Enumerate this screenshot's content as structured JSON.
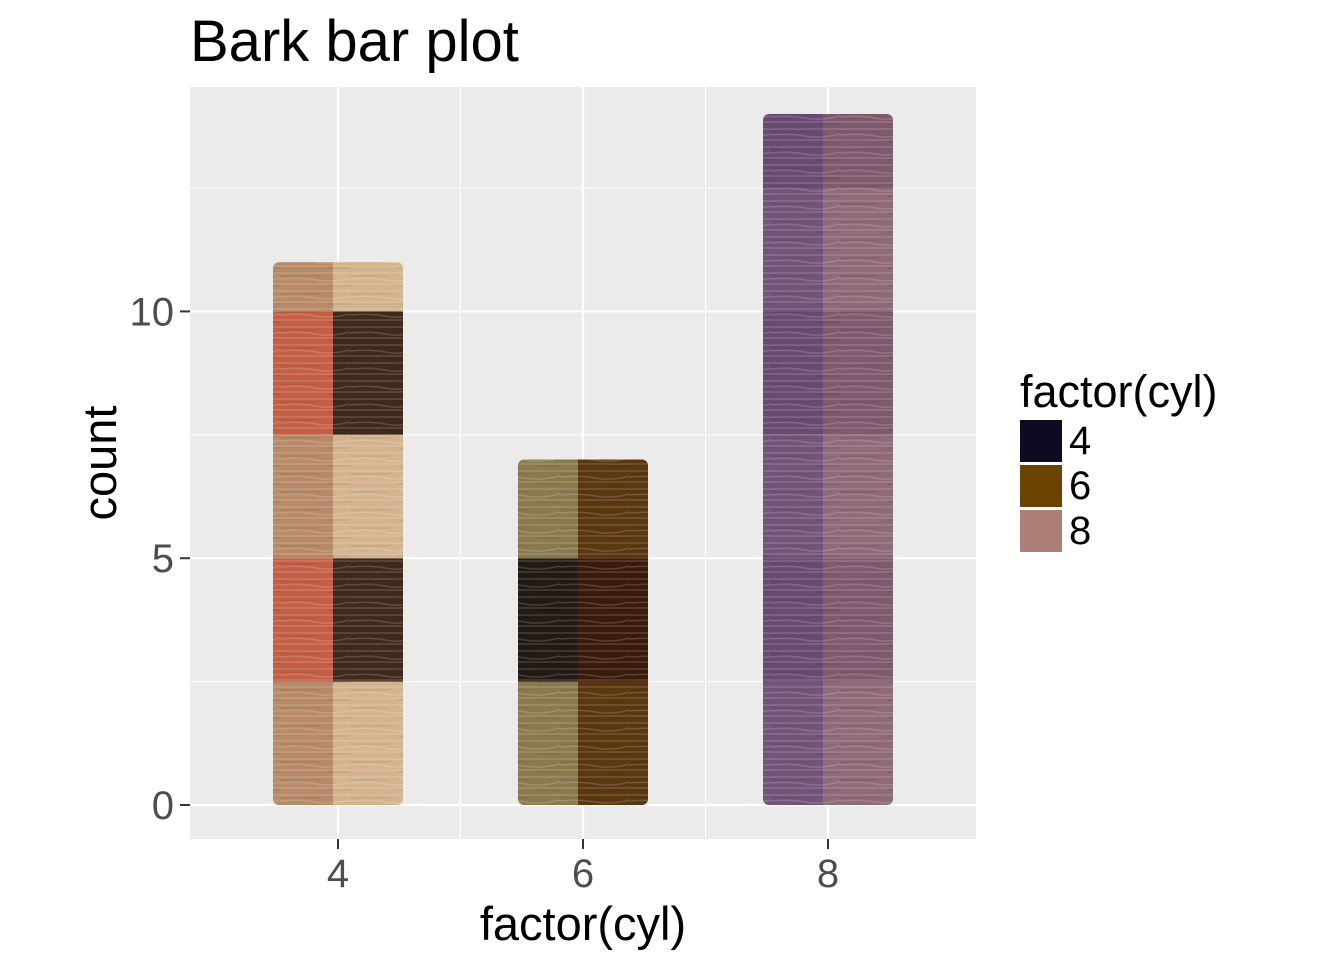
{
  "chart_data": {
    "type": "bar",
    "title": "Bark bar plot",
    "xlabel": "factor(cyl)",
    "ylabel": "count",
    "categories": [
      "4",
      "6",
      "8"
    ],
    "values": [
      11,
      7,
      14
    ],
    "ylim": [
      0,
      14
    ],
    "yticks": [
      "0",
      "5",
      "10"
    ],
    "grid": true,
    "bar_fill": "bark texture images",
    "legend": {
      "title": "factor(cyl)",
      "placement": "right",
      "items": [
        {
          "label": "4",
          "color": "#0d0b22"
        },
        {
          "label": "6",
          "color": "#6b4300"
        },
        {
          "label": "8",
          "color": "#ad7f79"
        }
      ]
    }
  },
  "colors": {
    "panel_background": "#ebebeb",
    "grid_major": "#ffffff",
    "tick_label": "#4d4d4d",
    "bar_4_left_light": "#b88a6a",
    "bar_4_left_dark": "#c45f45",
    "bar_4_right_light": "#d3b48f",
    "bar_4_right_dark": "#3e2a1d",
    "bar_6_left_light": "#8a7a4d",
    "bar_6_left_dark": "#221a13",
    "bar_6_right_light": "#5a370f",
    "bar_6_right_dark": "#3a1a0b",
    "bar_8_left": "#73537a",
    "bar_8_right": "#8f6a78"
  }
}
